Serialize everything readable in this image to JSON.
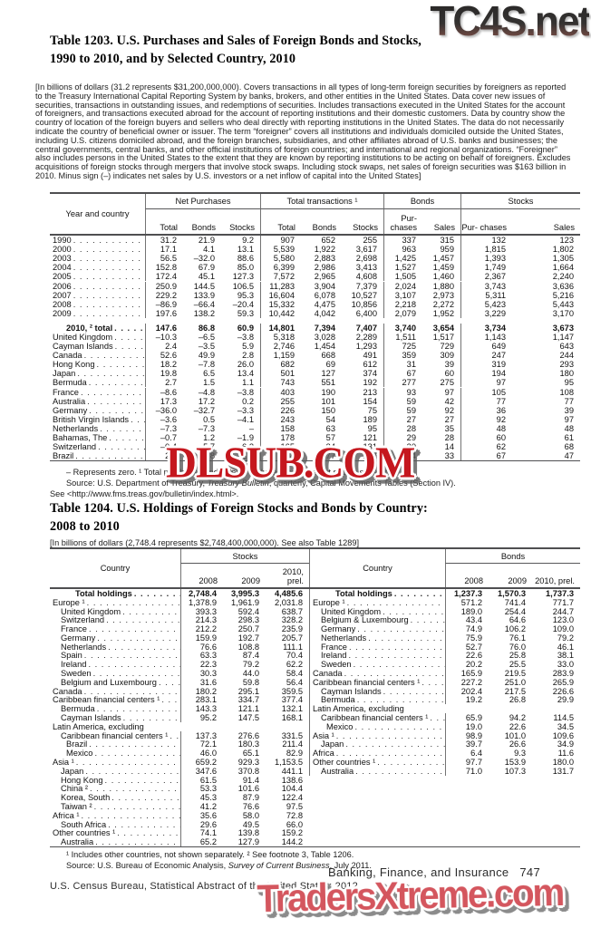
{
  "colors": {
    "watermark_red": "#c5171e",
    "watermark_pink": "#d4565e",
    "rule_gray": "#4f4f51"
  },
  "watermarks": {
    "top": "TC4S.net",
    "middle": "DLSUB.COM",
    "bottom": "TradersXtreme.com"
  },
  "footer": {
    "chapter": "Banking, Finance, and Insurance",
    "page": "747",
    "census": "U.S. Census Bureau, Statistical Abstract of the United States: 2012"
  },
  "table1203": {
    "title_line1": "Table 1203. U.S. Purchases and Sales of Foreign Bonds and Stocks,",
    "title_line2": "1990 to 2010, and by Selected Country, 2010",
    "intro": "[In billions of dollars (31.2 represents $31,200,000,000). Covers transactions in all types of long-term foreign securities by foreigners as reported to the Treasury International Capital Reporting System by banks, brokers, and other entities in the United States. Data cover new issues of securities, transactions in outstanding issues, and redemptions of securities. Includes transactions executed in the United States for the account of foreigners, and transactions executed abroad for the account of reporting institutions and their domestic customers. Data by country show the country of location of the foreign buyers and sellers who deal directly with reporting institutions in the United States. The data do not necessarily indicate the country of beneficial owner or issuer. The term “foreigner” covers all institutions and individuals domiciled outside the United States, including U.S. citizens domiciled abroad, and the foreign branches, subsidiaries, and other affiliates abroad of U.S. banks and businesses; the central governments, central banks, and other official institutions of foreign countries; and international and regional organizations. “Foreigner” also includes persons in the United States to the extent that they are known by reporting institutions to be acting on behalf of foreigners. Excludes acquisitions of foreign stocks through mergers that involve stock swaps. Including stock swaps, net sales of foreign securities was $163 billion in 2010. Minus sign (–) indicates net sales by U.S. investors or a net inflow of capital into the United States]",
    "header": {
      "year_country": "Year and country",
      "groups": [
        {
          "label": "Net Purchases"
        },
        {
          "label": "Total transactions ¹"
        },
        {
          "label": "Bonds"
        },
        {
          "label": "Stocks"
        }
      ],
      "sub": [
        "Total",
        "Bonds",
        "Stocks",
        "Total",
        "Bonds",
        "Stocks",
        "Pur- chases",
        "Sales",
        "Pur- chases",
        "Sales"
      ]
    },
    "rows": [
      {
        "label": "1990",
        "vals": [
          "31.2",
          "21.9",
          "9.2",
          "907",
          "652",
          "255",
          "337",
          "315",
          "132",
          "123"
        ]
      },
      {
        "label": "2000",
        "vals": [
          "17.1",
          "4.1",
          "13.1",
          "5,539",
          "1,922",
          "3,617",
          "963",
          "959",
          "1,815",
          "1,802"
        ]
      },
      {
        "label": "2003",
        "vals": [
          "56.5",
          "–32.0",
          "88.6",
          "5,580",
          "2,883",
          "2,698",
          "1,425",
          "1,457",
          "1,393",
          "1,305"
        ]
      },
      {
        "label": "2004",
        "vals": [
          "152.8",
          "67.9",
          "85.0",
          "6,399",
          "2,986",
          "3,413",
          "1,527",
          "1,459",
          "1,749",
          "1,664"
        ]
      },
      {
        "label": "2005",
        "vals": [
          "172.4",
          "45.1",
          "127.3",
          "7,572",
          "2,965",
          "4,608",
          "1,505",
          "1,460",
          "2,367",
          "2,240"
        ]
      },
      {
        "label": "2006",
        "vals": [
          "250.9",
          "144.5",
          "106.5",
          "11,283",
          "3,904",
          "7,379",
          "2,024",
          "1,880",
          "3,743",
          "3,636"
        ]
      },
      {
        "label": "2007",
        "vals": [
          "229.2",
          "133.9",
          "95.3",
          "16,604",
          "6,078",
          "10,527",
          "3,107",
          "2,973",
          "5,311",
          "5,216"
        ]
      },
      {
        "label": "2008",
        "vals": [
          "–86.9",
          "–66.4",
          "–20.4",
          "15,332",
          "4,475",
          "10,856",
          "2,218",
          "2,272",
          "5,423",
          "5,443"
        ]
      },
      {
        "label": "2009",
        "vals": [
          "197.6",
          "138.2",
          "59.3",
          "10,442",
          "4,042",
          "6,400",
          "2,079",
          "1,952",
          "3,229",
          "3,170"
        ]
      },
      {
        "label": "2010, ² total",
        "ind": 2,
        "bold": true,
        "gap": true,
        "vals": [
          "147.6",
          "86.8",
          "60.9",
          "14,801",
          "7,394",
          "7,407",
          "3,740",
          "3,654",
          "3,734",
          "3,673"
        ]
      },
      {
        "label": "United Kingdom",
        "vals": [
          "–10.3",
          "–6.5",
          "–3.8",
          "5,318",
          "3,028",
          "2,289",
          "1,511",
          "1,517",
          "1,143",
          "1,147"
        ]
      },
      {
        "label": "Cayman Islands",
        "vals": [
          "2.4",
          "–3.5",
          "5.9",
          "2,746",
          "1,454",
          "1,293",
          "725",
          "729",
          "649",
          "643"
        ]
      },
      {
        "label": "Canada",
        "vals": [
          "52.6",
          "49.9",
          "2.8",
          "1,159",
          "668",
          "491",
          "359",
          "309",
          "247",
          "244"
        ]
      },
      {
        "label": "Hong Kong",
        "vals": [
          "18.2",
          "–7.8",
          "26.0",
          "682",
          "69",
          "612",
          "31",
          "39",
          "319",
          "293"
        ]
      },
      {
        "label": "Japan",
        "vals": [
          "19.8",
          "6.5",
          "13.4",
          "501",
          "127",
          "374",
          "67",
          "60",
          "194",
          "180"
        ]
      },
      {
        "label": "Bermuda",
        "vals": [
          "2.7",
          "1.5",
          "1.1",
          "743",
          "551",
          "192",
          "277",
          "275",
          "97",
          "95"
        ]
      },
      {
        "label": "France",
        "vals": [
          "–8.6",
          "–4.8",
          "–3.8",
          "403",
          "190",
          "213",
          "93",
          "97",
          "105",
          "108"
        ]
      },
      {
        "label": "Australia",
        "vals": [
          "17.3",
          "17.2",
          "0.2",
          "255",
          "101",
          "154",
          "59",
          "42",
          "77",
          "77"
        ]
      },
      {
        "label": "Germany",
        "vals": [
          "–36.0",
          "–32.7",
          "–3.3",
          "226",
          "150",
          "75",
          "59",
          "92",
          "36",
          "39"
        ]
      },
      {
        "label": "British Virgin Islands",
        "vals": [
          "–3.6",
          "0.5",
          "–4.1",
          "243",
          "54",
          "189",
          "27",
          "27",
          "92",
          "97"
        ]
      },
      {
        "label": "Netherlands",
        "vals": [
          "–7.3",
          "–7.3",
          "–",
          "158",
          "63",
          "95",
          "28",
          "35",
          "48",
          "48"
        ]
      },
      {
        "label": "Bahamas, The",
        "vals": [
          "–0.7",
          "1.2",
          "–1.9",
          "178",
          "57",
          "121",
          "29",
          "28",
          "60",
          "61"
        ]
      },
      {
        "label": "Switzerland",
        "vals": [
          "–0.4",
          "5.7",
          "–6.2",
          "165",
          "34",
          "131",
          "20",
          "14",
          "62",
          "68"
        ]
      },
      {
        "label": "Brazil",
        "vals": [
          "2.0",
          "0.8",
          "1.2",
          "214",
          "77",
          "137",
          "34",
          "33",
          "67",
          "47"
        ]
      }
    ],
    "footnotes": {
      "line1": "– Represents zero. ¹ Total purchases and sales. ² Includes countries not shown separately.",
      "source_pre": "Source: U.S. Department of Treasury, ",
      "source_italic": "Treasury Bulletin",
      "source_post": ", quarterly, Capital Movements Tables (Section IV).",
      "see": "See <http://www.fms.treas.gov/bulletin/index.html>."
    }
  },
  "table1204": {
    "title_line1": "Table 1204. U.S. Holdings of Foreign Stocks and Bonds by Country:",
    "title_line2": "2008 to 2010",
    "bracket": "[In billions of dollars (2,748.4 represents $2,748,400,000,000). See also Table 1289]",
    "header": {
      "country": "Country",
      "stocks": "Stocks",
      "bonds": "Bonds",
      "years": [
        "2008",
        "2009",
        "2010, prel."
      ]
    },
    "left": {
      "rows": [
        {
          "label": "Total holdings",
          "ind": 3,
          "bold": true,
          "vals": [
            "2,748.4",
            "3,995.3",
            "4,485.6"
          ]
        },
        {
          "label": "Europe ¹",
          "vals": [
            "1,378.9",
            "1,961.9",
            "2,031.8"
          ]
        },
        {
          "label": "United Kingdom",
          "ind": 1,
          "vals": [
            "393.3",
            "592.4",
            "638.7"
          ]
        },
        {
          "label": "Switzerland",
          "ind": 1,
          "vals": [
            "214.3",
            "298.3",
            "328.2"
          ]
        },
        {
          "label": "France",
          "ind": 1,
          "vals": [
            "212.2",
            "250.7",
            "235.9"
          ]
        },
        {
          "label": "Germany",
          "ind": 1,
          "vals": [
            "159.9",
            "192.7",
            "205.7"
          ]
        },
        {
          "label": "Netherlands",
          "ind": 1,
          "vals": [
            "76.6",
            "108.8",
            "111.1"
          ]
        },
        {
          "label": "Spain",
          "ind": 1,
          "vals": [
            "63.3",
            "87.4",
            "70.4"
          ]
        },
        {
          "label": "Ireland",
          "ind": 1,
          "vals": [
            "22.3",
            "79.2",
            "62.2"
          ]
        },
        {
          "label": "Sweden",
          "ind": 1,
          "vals": [
            "30.3",
            "44.0",
            "58.4"
          ]
        },
        {
          "label": "Belgium and Luxembourg",
          "ind": 1,
          "vals": [
            "31.6",
            "59.8",
            "56.4"
          ]
        },
        {
          "label": "Canada",
          "vals": [
            "180.2",
            "295.1",
            "359.5"
          ]
        },
        {
          "label": "Caribbean financial centers ¹",
          "vals": [
            "283.1",
            "334.7",
            "377.4"
          ]
        },
        {
          "label": "Bermuda",
          "ind": 1,
          "vals": [
            "143.3",
            "121.1",
            "132.1"
          ]
        },
        {
          "label": "Cayman Islands",
          "ind": 1,
          "vals": [
            "95.2",
            "147.5",
            "168.1"
          ]
        },
        {
          "label": "Latin America, excluding",
          "dots": false,
          "vals": [
            "",
            "",
            ""
          ]
        },
        {
          "label": "Caribbean financial centers ¹",
          "ind": 1,
          "vals": [
            "137.3",
            "276.6",
            "331.5"
          ]
        },
        {
          "label": "Brazil",
          "ind": 2,
          "vals": [
            "72.1",
            "180.3",
            "211.4"
          ]
        },
        {
          "label": "Mexico",
          "ind": 2,
          "vals": [
            "46.0",
            "65.1",
            "82.9"
          ]
        },
        {
          "label": "Asia ¹",
          "vals": [
            "659.2",
            "929.3",
            "1,153.5"
          ]
        },
        {
          "label": "Japan",
          "ind": 1,
          "vals": [
            "347.6",
            "370.8",
            "441.1"
          ]
        },
        {
          "label": "Hong Kong",
          "ind": 1,
          "vals": [
            "61.5",
            "91.4",
            "138.6"
          ]
        },
        {
          "label": "China ²",
          "ind": 1,
          "vals": [
            "53.3",
            "101.6",
            "104.4"
          ]
        },
        {
          "label": "Korea, South",
          "ind": 1,
          "vals": [
            "45.3",
            "87.9",
            "122.4"
          ]
        },
        {
          "label": "Taiwan ²",
          "ind": 1,
          "vals": [
            "41.2",
            "76.6",
            "97.5"
          ]
        },
        {
          "label": "Africa ¹",
          "vals": [
            "35.6",
            "58.0",
            "72.8"
          ]
        },
        {
          "label": "South Africa",
          "ind": 1,
          "vals": [
            "29.6",
            "49.5",
            "66.0"
          ]
        },
        {
          "label": "Other countries ¹",
          "vals": [
            "74.1",
            "139.8",
            "159.2"
          ]
        },
        {
          "label": "Australia",
          "ind": 1,
          "vals": [
            "65.2",
            "127.9",
            "144.2"
          ]
        }
      ]
    },
    "right": {
      "rows": [
        {
          "label": "Total holdings",
          "ind": 3,
          "bold": true,
          "vals": [
            "1,237.3",
            "1,570.3",
            "1,737.3"
          ]
        },
        {
          "label": "Europe ¹",
          "vals": [
            "571.2",
            "741.4",
            "771.7"
          ]
        },
        {
          "label": "United Kingdom",
          "ind": 1,
          "vals": [
            "189.0",
            "254.4",
            "244.7"
          ]
        },
        {
          "label": "Belgium & Luxembourg",
          "ind": 1,
          "vals": [
            "43.4",
            "64.6",
            "123.0"
          ]
        },
        {
          "label": "Germany",
          "ind": 1,
          "vals": [
            "74.9",
            "106.2",
            "109.0"
          ]
        },
        {
          "label": "Netherlands",
          "ind": 1,
          "vals": [
            "75.9",
            "76.1",
            "79.2"
          ]
        },
        {
          "label": "France",
          "ind": 1,
          "vals": [
            "52.7",
            "76.0",
            "46.1"
          ]
        },
        {
          "label": "Ireland",
          "ind": 1,
          "vals": [
            "22.6",
            "25.8",
            "38.1"
          ]
        },
        {
          "label": "Sweden",
          "ind": 1,
          "vals": [
            "20.2",
            "25.5",
            "33.0"
          ]
        },
        {
          "label": "Canada",
          "vals": [
            "165.9",
            "219.5",
            "283.9"
          ]
        },
        {
          "label": "Caribbean financial centers ¹",
          "vals": [
            "227.2",
            "251.0",
            "265.9"
          ]
        },
        {
          "label": "Cayman Islands",
          "ind": 1,
          "vals": [
            "202.4",
            "217.5",
            "226.6"
          ]
        },
        {
          "label": "Bermuda",
          "ind": 1,
          "vals": [
            "19.2",
            "26.8",
            "29.9"
          ]
        },
        {
          "label": "Latin America, excluding",
          "dots": false,
          "vals": [
            "",
            "",
            ""
          ]
        },
        {
          "label": "Caribbean financial centers ¹",
          "ind": 1,
          "vals": [
            "65.9",
            "94.2",
            "114.5"
          ]
        },
        {
          "label": "Mexico",
          "ind": 2,
          "vals": [
            "19.0",
            "22.6",
            "34.5"
          ]
        },
        {
          "label": "Asia ¹",
          "vals": [
            "98.9",
            "101.0",
            "109.6"
          ]
        },
        {
          "label": "Japan",
          "ind": 1,
          "vals": [
            "39.7",
            "26.6",
            "34.9"
          ]
        },
        {
          "label": "Africa",
          "vals": [
            "6.4",
            "9.3",
            "11.6"
          ]
        },
        {
          "label": "Other countries ¹",
          "vals": [
            "97.7",
            "153.9",
            "180.0"
          ]
        },
        {
          "label": "Australia",
          "ind": 1,
          "vals": [
            "71.0",
            "107.3",
            "131.7"
          ]
        }
      ]
    },
    "footnotes": {
      "line1": "¹ Includes other countries, not shown separately. ² See footnote 3, Table 1206.",
      "source_pre": "Source: U.S. Bureau of Economic Analysis, ",
      "source_italic": "Survey of Current Business",
      "source_post": ", July 2011."
    }
  }
}
